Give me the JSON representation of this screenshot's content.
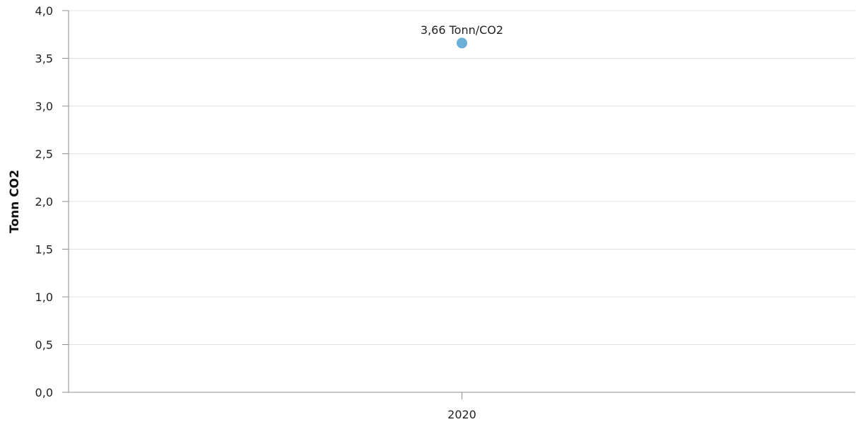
{
  "chart_data": {
    "type": "scatter",
    "title": "",
    "xlabel": "",
    "ylabel": "Tonn CO2",
    "categories": [
      "2020"
    ],
    "series": [
      {
        "values": [
          3.66
        ],
        "labels": [
          "3,66 Tonn/CO2"
        ],
        "color": "#6baed6"
      }
    ],
    "ylim": [
      0,
      4
    ],
    "yticks": [
      0,
      0.5,
      1,
      1.5,
      2,
      2.5,
      3,
      3.5,
      4
    ],
    "ytick_labels": [
      "0,0",
      "0,5",
      "1,0",
      "1,5",
      "2,0",
      "2,5",
      "3,0",
      "3,5",
      "4,0"
    ],
    "grid": true,
    "legend": "none"
  }
}
